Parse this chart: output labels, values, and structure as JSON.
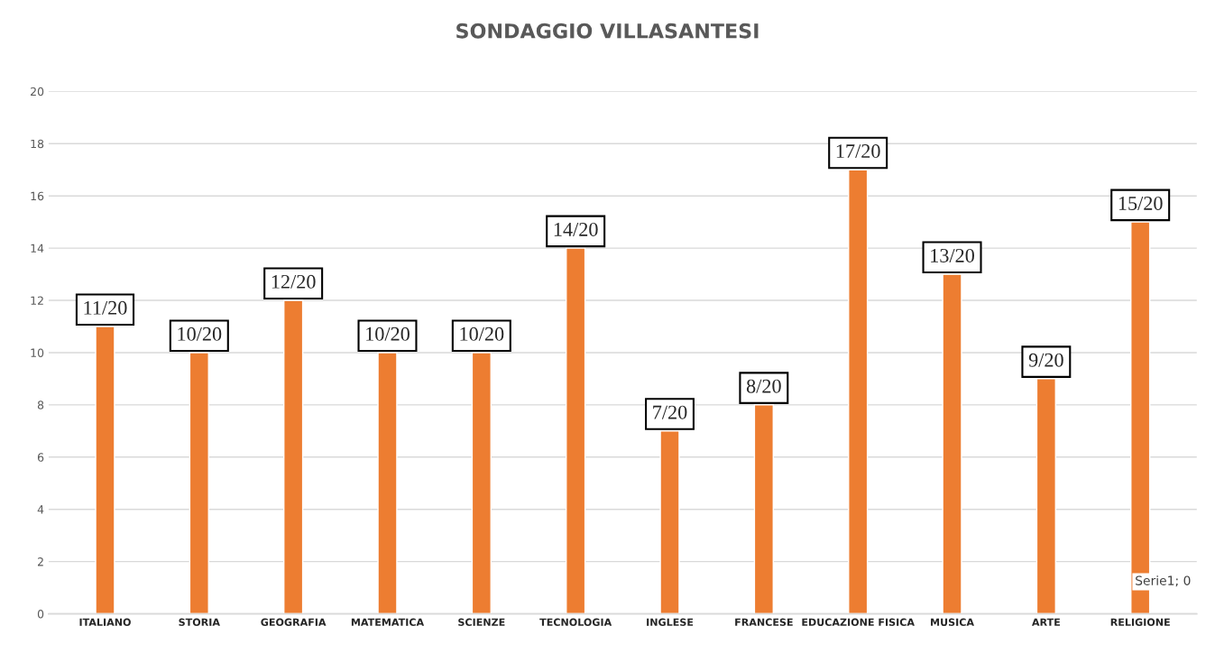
{
  "chart_data": {
    "type": "bar",
    "title": "SONDAGGIO VILLASANTESI",
    "categories": [
      "ITALIANO",
      "STORIA",
      "GEOGRAFIA",
      "MATEMATICA",
      "SCIENZE",
      "TECNOLOGIA",
      "INGLESE",
      "FRANCESE",
      "EDUCAZIONE FISICA",
      "MUSICA",
      "ARTE",
      "RELIGIONE"
    ],
    "values": [
      11,
      10,
      12,
      10,
      10,
      14,
      7,
      8,
      17,
      13,
      9,
      15
    ],
    "value_labels": [
      "11/20",
      "10/20",
      "12/20",
      "10/20",
      "10/20",
      "14/20",
      "7/20",
      "8/20",
      "17/20",
      "13/20",
      "9/20",
      "15/20"
    ],
    "color": "#ed7d31",
    "ylim": [
      0,
      20
    ],
    "yticks": [
      0,
      2,
      4,
      6,
      8,
      10,
      12,
      14,
      16,
      18,
      20
    ],
    "grid": "y",
    "annotations": [
      "Serie1; 0"
    ]
  }
}
